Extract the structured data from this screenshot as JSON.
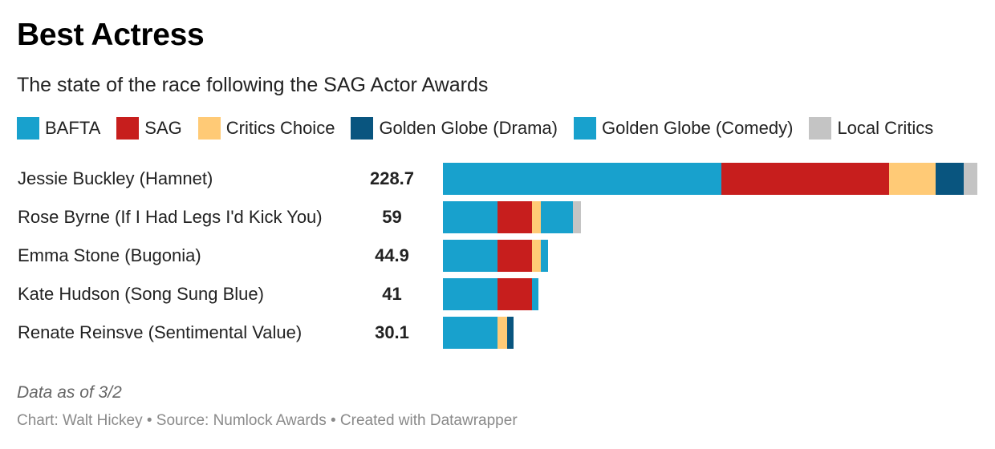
{
  "header": {
    "title": "Best Actress",
    "subtitle": "The state of the race following the SAG Actor Awards"
  },
  "legend": [
    {
      "label": "BAFTA",
      "color": "#18a1cd"
    },
    {
      "label": "SAG",
      "color": "#c71e1d"
    },
    {
      "label": "Critics Choice",
      "color": "#ffca76"
    },
    {
      "label": "Golden Globe (Drama)",
      "color": "#09557f"
    },
    {
      "label": "Golden Globe (Comedy)",
      "color": "#18a1cd"
    },
    {
      "label": "Local Critics",
      "color": "#c4c4c4"
    }
  ],
  "chart_data": {
    "type": "bar",
    "orientation": "horizontal",
    "stacked": true,
    "title": "Best Actress",
    "subtitle": "The state of the race following the SAG Actor Awards",
    "categories": [
      "Jessie Buckley (Hamnet)",
      "Rose Byrne (If I Had Legs I'd Kick You)",
      "Emma Stone (Bugonia)",
      "Kate Hudson (Song Sung Blue)",
      "Renate Reinsve (Sentimental Value)"
    ],
    "totals_display": [
      "228.7",
      "59",
      "44.9",
      "41",
      "30.1"
    ],
    "totals": [
      228.7,
      59,
      44.9,
      41,
      30.1
    ],
    "xlim": [
      0,
      228.7
    ],
    "series": [
      {
        "name": "BAFTA",
        "values": [
          119,
          23.5,
          23.5,
          23.5,
          23.5
        ]
      },
      {
        "name": "SAG",
        "values": [
          72,
          14.5,
          14.5,
          14.5,
          0
        ]
      },
      {
        "name": "Critics Choice",
        "values": [
          20,
          4,
          4,
          0,
          4
        ]
      },
      {
        "name": "Golden Globe (Drama)",
        "values": [
          12,
          0,
          0,
          0,
          2.6
        ]
      },
      {
        "name": "Golden Globe (Comedy)",
        "values": [
          0,
          13.5,
          2.9,
          3,
          0
        ]
      },
      {
        "name": "Local Critics",
        "values": [
          5.7,
          3.5,
          0,
          0,
          0
        ]
      }
    ]
  },
  "notes": "Data as of 3/2",
  "footer": "Chart: Walt Hickey • Source: Numlock Awards • Created with Datawrapper"
}
